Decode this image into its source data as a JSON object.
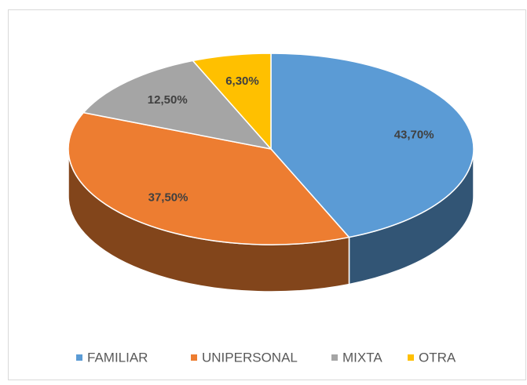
{
  "chart_data": {
    "type": "pie",
    "categories": [
      "FAMILIAR",
      "UNIPERSONAL",
      "MIXTA",
      "OTRA"
    ],
    "values": [
      43.7,
      37.5,
      12.5,
      6.3
    ],
    "value_labels": [
      "43,70%",
      "37,50%",
      "12,50%",
      "6,30%"
    ],
    "colors": [
      "#5b9bd5",
      "#ed7d31",
      "#a5a5a5",
      "#ffc000"
    ],
    "legend": "bottom"
  }
}
